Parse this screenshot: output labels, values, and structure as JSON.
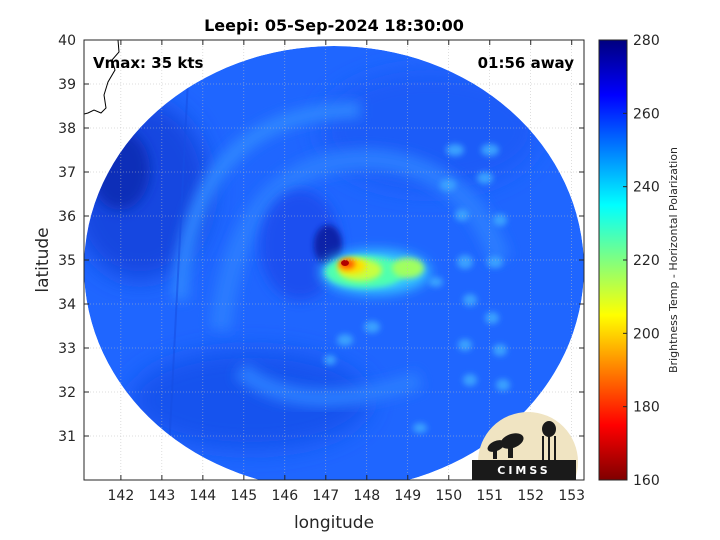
{
  "chart_data": {
    "type": "heatmap",
    "title": "Leepi: 05-Sep-2024 18:30:00",
    "xlabel": "longitude",
    "ylabel": "latitude",
    "xlim": [
      141.1,
      153.3
    ],
    "ylim": [
      30.0,
      40.0
    ],
    "xticks": [
      142,
      143,
      144,
      145,
      146,
      147,
      148,
      149,
      150,
      151,
      152,
      153
    ],
    "yticks": [
      31,
      32,
      33,
      34,
      35,
      36,
      37,
      38,
      39,
      40
    ],
    "grid": true,
    "storm_center": {
      "lon": 147.5,
      "lat": 34.95
    },
    "annotations": {
      "vmax": "Vmax: 35 kts",
      "time_offset": "01:56 away"
    },
    "colorbar": {
      "label": "Brightness Temp - Horizontal Polarization",
      "range": [
        160,
        280
      ],
      "ticks": [
        160,
        180,
        200,
        220,
        240,
        260,
        280
      ],
      "colormap": "jet"
    },
    "logo_text": "CIMSS",
    "colors": {
      "background_field": "#1e64ff",
      "min_color": "#7f0000",
      "max_color": "#00007f"
    }
  }
}
